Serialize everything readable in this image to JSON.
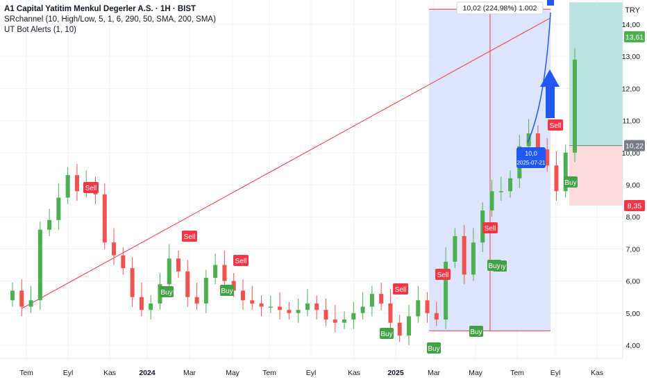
{
  "header": {
    "symbol_title": "A1 Capital Yatitim Menkul Degerler A.S. · 1H · BIST",
    "indicators": [
      "SRchannel (10, High/Low, 5, 1, 6, 290, 50, SMA, 200, SMA)",
      "UT Bot Alerts (1, 10)"
    ]
  },
  "price_axis": {
    "currency": "TRY",
    "ticks": [
      "14,00",
      "13,00",
      "12,00",
      "11,00",
      "10,00",
      "9,00",
      "8,00",
      "7,00",
      "6,00",
      "5,00",
      "4,00"
    ],
    "tick_values": [
      14,
      13,
      12,
      11,
      10,
      9,
      8,
      7,
      6,
      5,
      4
    ],
    "badges": [
      {
        "label": "13,61",
        "value": 13.61,
        "color": "#4caf50"
      },
      {
        "label": "10,22",
        "value": 10.22,
        "color": "#787b86"
      },
      {
        "label": "8,35",
        "value": 8.35,
        "color": "#f23645"
      }
    ]
  },
  "time_axis": {
    "labels": [
      "Tem",
      "Eyl",
      "Kas",
      "2024",
      "Mar",
      "May",
      "Tem",
      "Eyl",
      "Kas",
      "2025",
      "Mar",
      "May",
      "Tem",
      "Eyl",
      "Kas"
    ],
    "bold": [
      "2024",
      "2025"
    ]
  },
  "measure_tool": {
    "label": "10,02 (224,98%) 1.002",
    "start_price": 4.45,
    "end_price": 14.47
  },
  "bar_marker": {
    "line1": "10,0",
    "line2": "2025-07-21"
  },
  "position_tool": {
    "entry": 10.22,
    "target": 14.47,
    "stop": 8.35
  },
  "signals": [
    {
      "label": "Sell",
      "type": "sell"
    },
    {
      "label": "Buy",
      "type": "buy"
    },
    {
      "label": "Sell",
      "type": "sell"
    },
    {
      "label": "Buy",
      "type": "buy"
    },
    {
      "label": "Sell",
      "type": "sell"
    },
    {
      "label": "Buy",
      "type": "buy"
    },
    {
      "label": "Sell",
      "type": "sell"
    },
    {
      "label": "Buy",
      "type": "buy"
    },
    {
      "label": "Sell",
      "type": "sell"
    },
    {
      "label": "Buy",
      "type": "buy"
    },
    {
      "label": "Buy",
      "type": "buy"
    },
    {
      "label": "Sell",
      "type": "sell"
    },
    {
      "label": "Buy",
      "type": "buy"
    },
    {
      "label": "Sell",
      "type": "sell"
    },
    {
      "label": "Buy",
      "type": "buy"
    }
  ],
  "colors": {
    "up": "#26a69a",
    "up_strong": "#4caf50",
    "down": "#ef5350",
    "sell": "#f23645",
    "buy": "#43a047",
    "trendline": "#f23645",
    "measure_fill": "#d6e0fb",
    "arrow": "#2157f3",
    "target_zone": "#b2dfdb",
    "stop_zone": "#fcd7da",
    "grid": "#f0f3fa"
  },
  "chart_data": {
    "type": "candlestick",
    "close_series": [
      5.7,
      5.2,
      5.4,
      7.6,
      7.9,
      8.6,
      9.3,
      8.8,
      9.0,
      8.7,
      7.2,
      6.8,
      6.4,
      5.5,
      5.1,
      5.3,
      5.9,
      6.7,
      6.3,
      5.5,
      5.3,
      6.1,
      6.5,
      6.0,
      5.7,
      5.4,
      5.3,
      5.2,
      5.2,
      5.1,
      5.0,
      5.1,
      5.3,
      5.1,
      4.8,
      4.7,
      4.8,
      5.0,
      5.2,
      5.6,
      5.3,
      4.7,
      4.3,
      4.9,
      5.4,
      5.0,
      4.8,
      6.6,
      7.4,
      6.2,
      7.2,
      8.2,
      8.8,
      8.8,
      9.2,
      10.2,
      10.6,
      10.1,
      9.6,
      8.8,
      10.0,
      12.9
    ],
    "ylim": [
      3.8,
      14.6
    ]
  }
}
